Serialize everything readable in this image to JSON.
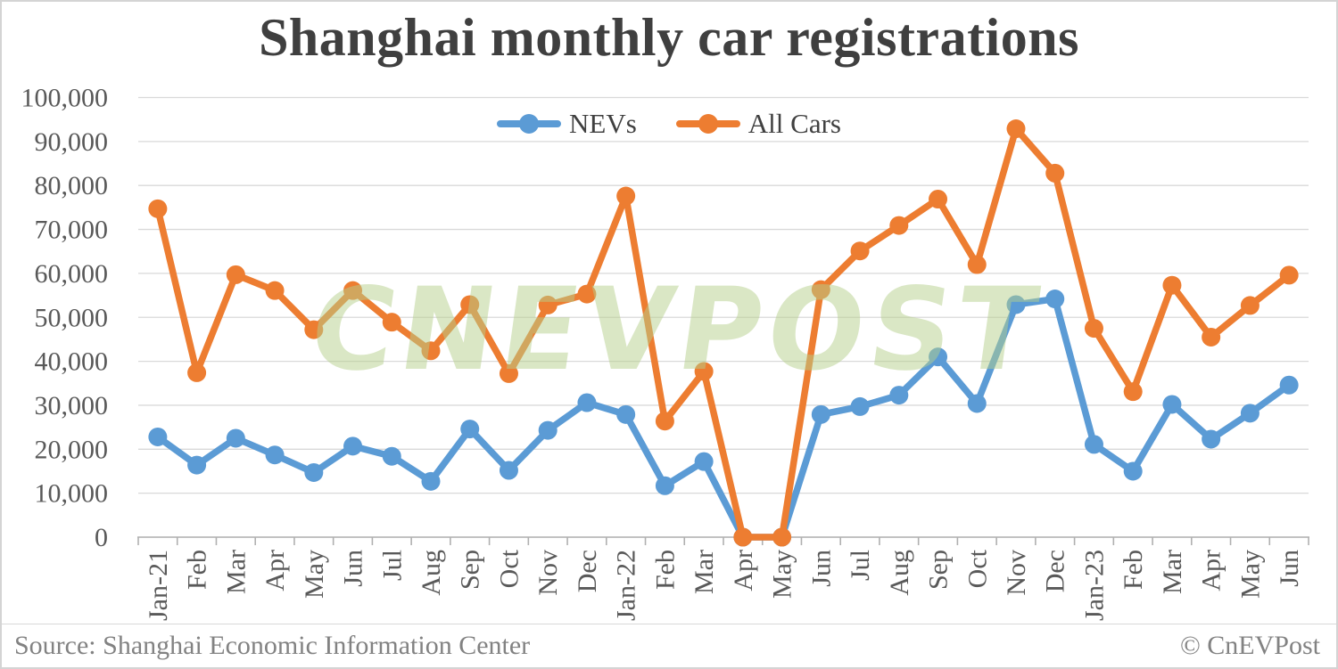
{
  "chart": {
    "title": "Shanghai monthly car registrations"
  },
  "chart_data": {
    "type": "line",
    "title": "Shanghai monthly car registrations",
    "categories": [
      "Jan-21",
      "Feb",
      "Mar",
      "Apr",
      "May",
      "Jun",
      "Jul",
      "Aug",
      "Sep",
      "Oct",
      "Nov",
      "Dec",
      "Jan-22",
      "Feb",
      "Mar",
      "Apr",
      "May",
      "Jun",
      "Jul",
      "Aug",
      "Sep",
      "Oct",
      "Nov",
      "Dec",
      "Jan-23",
      "Feb",
      "Mar",
      "Apr",
      "May",
      "Jun"
    ],
    "series": [
      {
        "name": "NEVs",
        "color": "#5B9BD5",
        "values": [
          22800,
          16400,
          22500,
          18700,
          14700,
          20700,
          18400,
          12700,
          24600,
          15200,
          24300,
          30600,
          27900,
          11700,
          17200,
          0,
          0,
          27900,
          29700,
          32300,
          41000,
          30400,
          52900,
          54200,
          21100,
          15000,
          30200,
          22300,
          28200,
          34600
        ]
      },
      {
        "name": "All Cars",
        "color": "#ED7D31",
        "values": [
          74700,
          37400,
          59700,
          56100,
          47200,
          56100,
          48900,
          42400,
          52900,
          37200,
          52800,
          55300,
          77600,
          26400,
          37700,
          0,
          0,
          56300,
          65100,
          70900,
          76900,
          62000,
          92900,
          82800,
          47500,
          33100,
          57300,
          45500,
          52700,
          59600
        ]
      }
    ],
    "xlabel": "",
    "ylabel": "",
    "ylim": [
      0,
      100000
    ],
    "y_tick_step": 10000,
    "y_tick_labels": [
      "0",
      "10,000",
      "20,000",
      "30,000",
      "40,000",
      "50,000",
      "60,000",
      "70,000",
      "80,000",
      "90,000",
      "100,000"
    ],
    "grid": "horizontal",
    "legend_position": "top-center"
  },
  "watermark": {
    "text": "CNEVPOST",
    "color": "#b5cf8c"
  },
  "footer": {
    "source": "Source: Shanghai Economic Information Center",
    "copyright": "© CnEVPost"
  },
  "style_colors": {
    "title_text": "#3f3f3f",
    "axis_text": "#595959",
    "gridline": "#d9d9d9",
    "axis_line": "#b0b0b0",
    "footer_text": "#828282"
  }
}
